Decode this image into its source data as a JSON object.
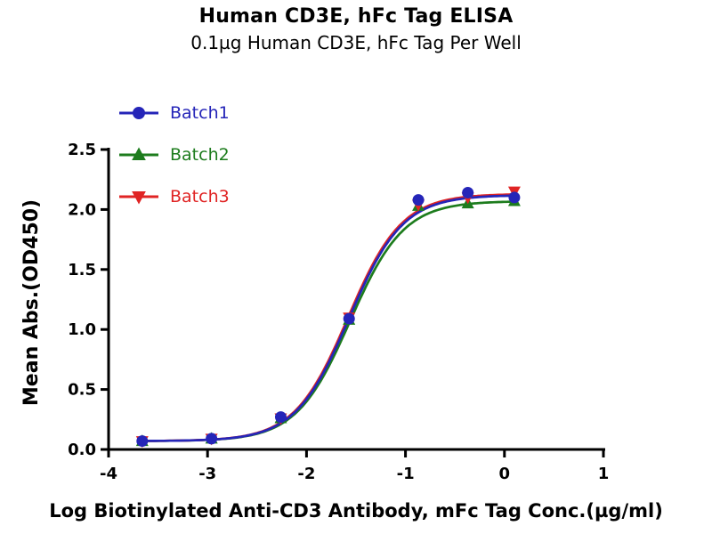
{
  "chart_data": {
    "type": "scatter",
    "title": "Human CD3E, hFc Tag ELISA",
    "subtitle": "0.1µg Human CD3E, hFc Tag Per Well",
    "xlabel": "Log Biotinylated Anti-CD3 Antibody, mFc Tag Conc.(µg/ml)",
    "ylabel": "Mean Abs.(OD450)",
    "xlim": [
      -4,
      1
    ],
    "ylim": [
      0,
      2.5
    ],
    "xticks": {
      "values": [
        -4,
        -3,
        -2,
        -1,
        0,
        1
      ],
      "labels": [
        "-4",
        "-3",
        "-2",
        "-1",
        "0",
        "1"
      ]
    },
    "yticks": {
      "values": [
        0,
        0.5,
        1,
        1.5,
        2,
        2.5
      ],
      "labels": [
        "0.0",
        "0.5",
        "1.0",
        "1.5",
        "2.0",
        "2.5"
      ]
    },
    "grid": false,
    "legend_position": "top-left-inside",
    "curve_fit": "sigmoidal dose-response (four-parameter logistic)",
    "series": [
      {
        "name": "Batch1",
        "color": "#2525b8",
        "marker": "circle",
        "points": [
          [
            -3.66,
            0.07
          ],
          [
            -2.96,
            0.09
          ],
          [
            -2.26,
            0.27
          ],
          [
            -1.57,
            1.09
          ],
          [
            -0.87,
            2.08
          ],
          [
            -0.37,
            2.14
          ],
          [
            0.1,
            2.1
          ]
        ],
        "fit": {
          "bottom": 0.07,
          "top": 2.12,
          "logec50": -1.57,
          "hill": 1.6
        }
      },
      {
        "name": "Batch2",
        "color": "#1d7c1d",
        "marker": "triangle-up",
        "points": [
          [
            -3.66,
            0.07
          ],
          [
            -2.96,
            0.09
          ],
          [
            -2.26,
            0.26
          ],
          [
            -1.57,
            1.08
          ],
          [
            -0.87,
            2.03
          ],
          [
            -0.37,
            2.05
          ],
          [
            0.1,
            2.07
          ]
        ],
        "fit": {
          "bottom": 0.07,
          "top": 2.07,
          "logec50": -1.56,
          "hill": 1.6
        }
      },
      {
        "name": "Batch3",
        "color": "#e02424",
        "marker": "triangle-down",
        "points": [
          [
            -3.66,
            0.07
          ],
          [
            -2.96,
            0.09
          ],
          [
            -2.26,
            0.26
          ],
          [
            -1.57,
            1.1
          ],
          [
            -0.87,
            2.04
          ],
          [
            -0.37,
            2.1
          ],
          [
            0.1,
            2.15
          ]
        ],
        "fit": {
          "bottom": 0.07,
          "top": 2.13,
          "logec50": -1.58,
          "hill": 1.6
        }
      }
    ]
  }
}
